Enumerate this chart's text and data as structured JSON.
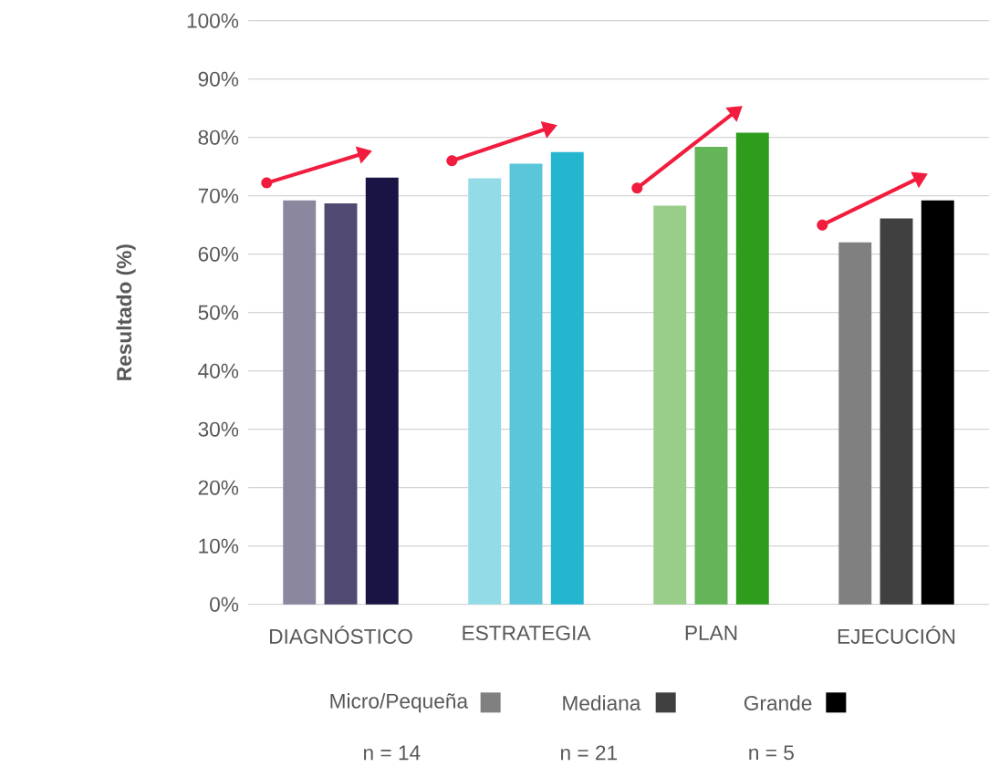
{
  "chart_data": {
    "type": "bar",
    "ylabel": "Resultado (%)",
    "categories": [
      "DIAGNÓSTICO",
      "ESTRATEGIA",
      "PLAN",
      "EJECUCIÓN"
    ],
    "series": [
      {
        "name": "Micro/Pequeña",
        "color": "#808080",
        "colors": [
          "#8a879f",
          "#93dbe7",
          "#99cd8a",
          "#808080"
        ],
        "values": [
          69.2,
          73.0,
          68.3,
          62.0
        ]
      },
      {
        "name": "Mediana",
        "color": "#404040",
        "colors": [
          "#504a72",
          "#5bc5da",
          "#63b557",
          "#404040"
        ],
        "values": [
          68.7,
          75.5,
          78.4,
          66.1
        ]
      },
      {
        "name": "Grande",
        "color": "#000000",
        "colors": [
          "#191443",
          "#24b5cf",
          "#2f9c1d",
          "#000000"
        ],
        "values": [
          73.1,
          77.5,
          80.8,
          69.2
        ]
      }
    ],
    "ylim": [
      0,
      100
    ],
    "yticks": [
      {
        "value": 0,
        "label": "0%"
      },
      {
        "value": 10,
        "label": "10%"
      },
      {
        "value": 20,
        "label": "20%"
      },
      {
        "value": 30,
        "label": "30%"
      },
      {
        "value": 40,
        "label": "40%"
      },
      {
        "value": 50,
        "label": "50%"
      },
      {
        "value": 60,
        "label": "60%"
      },
      {
        "value": 70,
        "label": "70%"
      },
      {
        "value": 80,
        "label": "80%"
      },
      {
        "value": 90,
        "label": "90%"
      },
      {
        "value": 100,
        "label": "100%"
      }
    ],
    "grid": "y",
    "legend": "bottom",
    "annotations": [
      "n = 14",
      "n = 21",
      "n = 5"
    ]
  }
}
